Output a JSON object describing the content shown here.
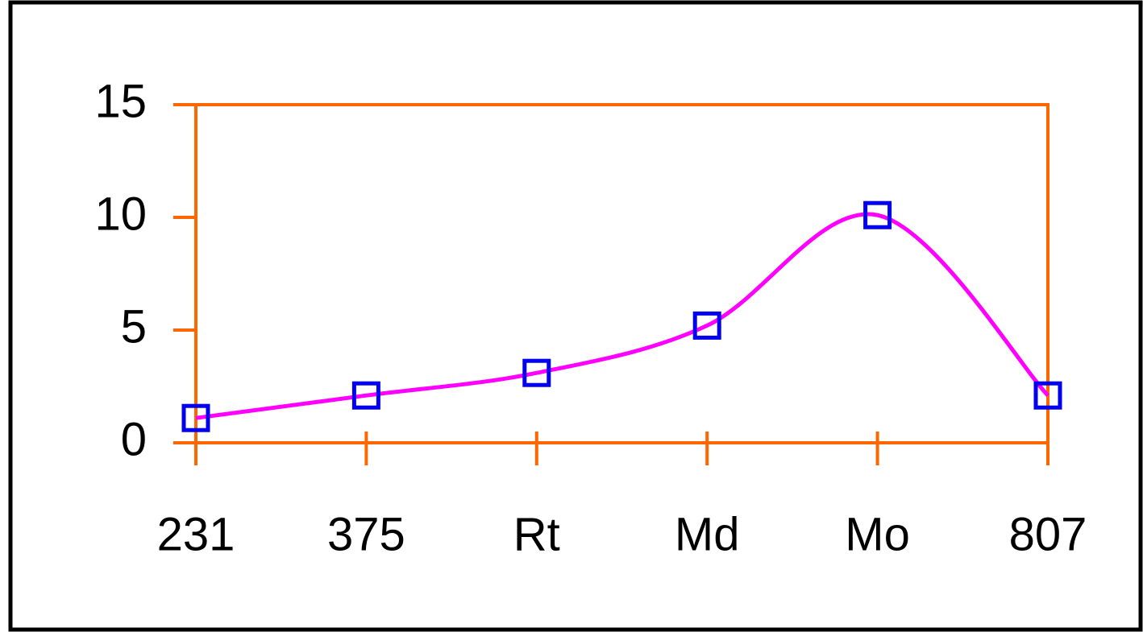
{
  "chart_data": {
    "type": "line",
    "categories": [
      "231",
      "375",
      "Rt",
      "Md",
      "Mo",
      "807"
    ],
    "series": [
      {
        "color": "#ff00ff",
        "marker_color": "#0000ee",
        "values": [
          1.1,
          2.1,
          3.1,
          5.2,
          10.1,
          2.1
        ]
      }
    ],
    "ylim": [
      0,
      15
    ],
    "yticks": [
      0,
      5,
      10,
      15
    ],
    "grid": false,
    "axis_color": "#ff6600"
  }
}
